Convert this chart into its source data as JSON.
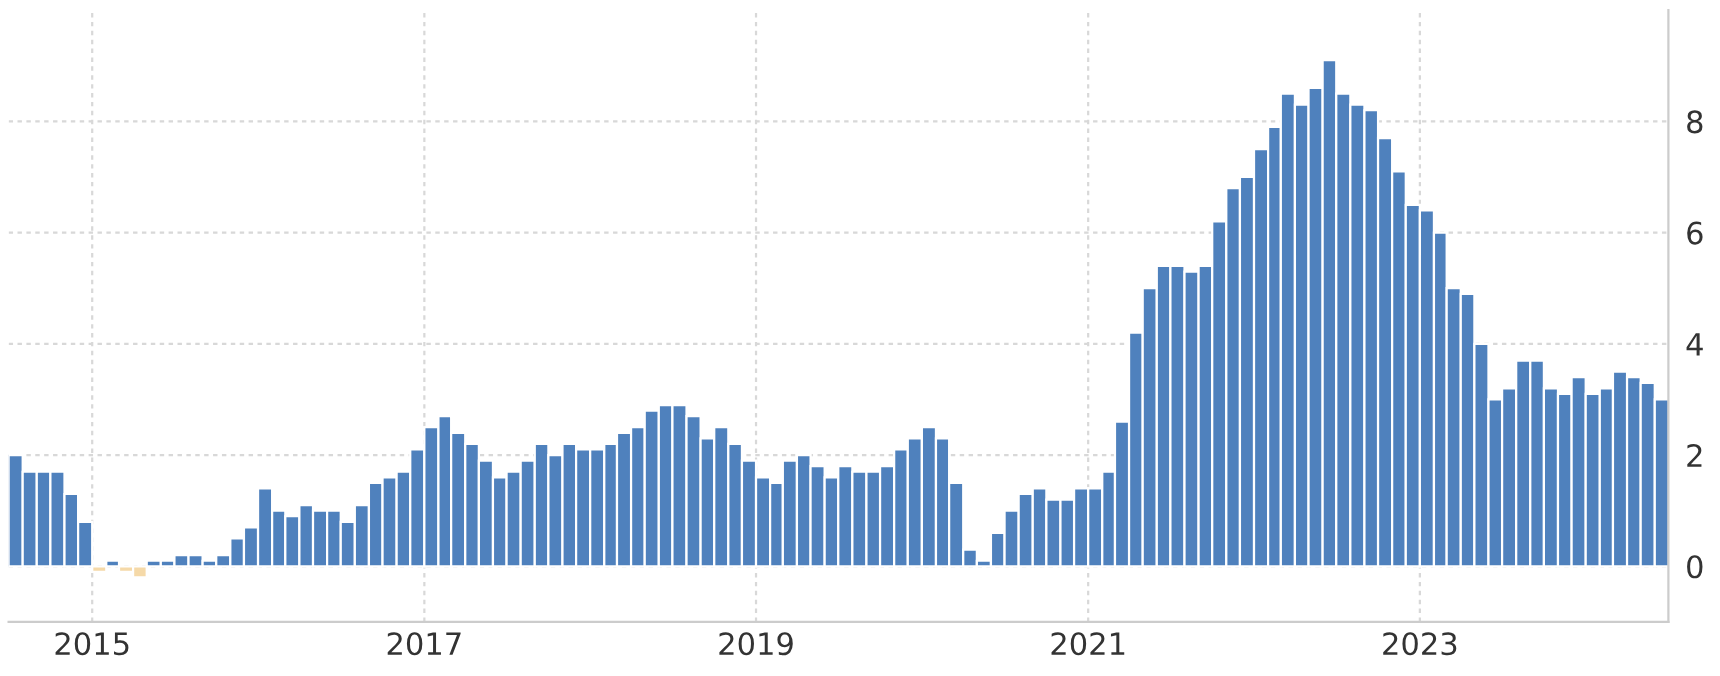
{
  "chart_data": {
    "type": "bar",
    "x": [
      "2014-07",
      "2014-08",
      "2014-09",
      "2014-10",
      "2014-11",
      "2014-12",
      "2015-01",
      "2015-02",
      "2015-03",
      "2015-04",
      "2015-05",
      "2015-06",
      "2015-07",
      "2015-08",
      "2015-09",
      "2015-10",
      "2015-11",
      "2015-12",
      "2016-01",
      "2016-02",
      "2016-03",
      "2016-04",
      "2016-05",
      "2016-06",
      "2016-07",
      "2016-08",
      "2016-09",
      "2016-10",
      "2016-11",
      "2016-12",
      "2017-01",
      "2017-02",
      "2017-03",
      "2017-04",
      "2017-05",
      "2017-06",
      "2017-07",
      "2017-08",
      "2017-09",
      "2017-10",
      "2017-11",
      "2017-12",
      "2018-01",
      "2018-02",
      "2018-03",
      "2018-04",
      "2018-05",
      "2018-06",
      "2018-07",
      "2018-08",
      "2018-09",
      "2018-10",
      "2018-11",
      "2018-12",
      "2019-01",
      "2019-02",
      "2019-03",
      "2019-04",
      "2019-05",
      "2019-06",
      "2019-07",
      "2019-08",
      "2019-09",
      "2019-10",
      "2019-11",
      "2019-12",
      "2020-01",
      "2020-02",
      "2020-03",
      "2020-04",
      "2020-05",
      "2020-06",
      "2020-07",
      "2020-08",
      "2020-09",
      "2020-10",
      "2020-11",
      "2020-12",
      "2021-01",
      "2021-02",
      "2021-03",
      "2021-04",
      "2021-05",
      "2021-06",
      "2021-07",
      "2021-08",
      "2021-09",
      "2021-10",
      "2021-11",
      "2021-12",
      "2022-01",
      "2022-02",
      "2022-03",
      "2022-04",
      "2022-05",
      "2022-06",
      "2022-07",
      "2022-08",
      "2022-09",
      "2022-10",
      "2022-11",
      "2022-12",
      "2023-01",
      "2023-02",
      "2023-03",
      "2023-04",
      "2023-05",
      "2023-06",
      "2023-07",
      "2023-08",
      "2023-09",
      "2023-10",
      "2023-11",
      "2023-12",
      "2024-01",
      "2024-02",
      "2024-03",
      "2024-04",
      "2024-05",
      "2024-06"
    ],
    "values": [
      2.0,
      1.7,
      1.7,
      1.7,
      1.3,
      0.8,
      -0.1,
      0.1,
      -0.1,
      -0.2,
      0.1,
      0.1,
      0.2,
      0.2,
      0.1,
      0.2,
      0.5,
      0.7,
      1.4,
      1.0,
      0.9,
      1.1,
      1.0,
      1.0,
      0.8,
      1.1,
      1.5,
      1.6,
      1.7,
      2.1,
      2.5,
      2.7,
      2.4,
      2.2,
      1.9,
      1.6,
      1.7,
      1.9,
      2.2,
      2.0,
      2.2,
      2.1,
      2.1,
      2.2,
      2.4,
      2.5,
      2.8,
      2.9,
      2.9,
      2.7,
      2.3,
      2.5,
      2.2,
      1.9,
      1.6,
      1.5,
      1.9,
      2.0,
      1.8,
      1.6,
      1.8,
      1.7,
      1.7,
      1.8,
      2.1,
      2.3,
      2.5,
      2.3,
      1.5,
      0.3,
      0.1,
      0.6,
      1.0,
      1.3,
      1.4,
      1.2,
      1.2,
      1.4,
      1.4,
      1.7,
      2.6,
      4.2,
      5.0,
      5.4,
      5.4,
      5.3,
      5.4,
      6.2,
      6.8,
      7.0,
      7.5,
      7.9,
      8.5,
      8.3,
      8.6,
      9.1,
      8.5,
      8.3,
      8.2,
      7.7,
      7.1,
      6.5,
      6.4,
      6.0,
      5.0,
      4.9,
      4.0,
      3.0,
      3.2,
      3.7,
      3.7,
      3.2,
      3.1,
      3.4,
      3.1,
      3.2,
      3.5,
      3.4,
      3.3,
      3.0
    ],
    "colors": [
      "#4f81bd",
      "#4f81bd",
      "#4f81bd",
      "#4f81bd",
      "#4f81bd",
      "#4f81bd",
      "#f5d9a8",
      "#4f81bd",
      "#f5d9a8",
      "#f5d9a8",
      "#4f81bd",
      "#4f81bd",
      "#4f81bd",
      "#4f81bd",
      "#4f81bd",
      "#4f81bd",
      "#4f81bd",
      "#4f81bd",
      "#4f81bd",
      "#4f81bd",
      "#4f81bd",
      "#4f81bd",
      "#4f81bd",
      "#4f81bd",
      "#4f81bd",
      "#4f81bd",
      "#4f81bd",
      "#4f81bd",
      "#4f81bd",
      "#4f81bd",
      "#4f81bd",
      "#4f81bd",
      "#4f81bd",
      "#4f81bd",
      "#4f81bd",
      "#4f81bd",
      "#4f81bd",
      "#4f81bd",
      "#4f81bd",
      "#4f81bd",
      "#4f81bd",
      "#4f81bd",
      "#4f81bd",
      "#4f81bd",
      "#4f81bd",
      "#4f81bd",
      "#4f81bd",
      "#4f81bd",
      "#4f81bd",
      "#4f81bd",
      "#4f81bd",
      "#4f81bd",
      "#4f81bd",
      "#4f81bd",
      "#4f81bd",
      "#4f81bd",
      "#4f81bd",
      "#4f81bd",
      "#4f81bd",
      "#4f81bd",
      "#4f81bd",
      "#4f81bd",
      "#4f81bd",
      "#4f81bd",
      "#4f81bd",
      "#4f81bd",
      "#4f81bd",
      "#4f81bd",
      "#4f81bd",
      "#4f81bd",
      "#4f81bd",
      "#4f81bd",
      "#4f81bd",
      "#4f81bd",
      "#4f81bd",
      "#4f81bd",
      "#4f81bd",
      "#4f81bd",
      "#4f81bd",
      "#4f81bd",
      "#4f81bd",
      "#4f81bd",
      "#4f81bd",
      "#4f81bd",
      "#4f81bd",
      "#4f81bd",
      "#4f81bd",
      "#4f81bd",
      "#4f81bd",
      "#4f81bd",
      "#4f81bd",
      "#4f81bd",
      "#4f81bd",
      "#4f81bd",
      "#4f81bd",
      "#4f81bd",
      "#4f81bd",
      "#4f81bd",
      "#4f81bd",
      "#4f81bd",
      "#4f81bd",
      "#4f81bd",
      "#4f81bd",
      "#4f81bd",
      "#4f81bd",
      "#4f81bd",
      "#4f81bd",
      "#4f81bd",
      "#4f81bd",
      "#4f81bd",
      "#4f81bd",
      "#4f81bd",
      "#4f81bd",
      "#4f81bd",
      "#4f81bd",
      "#4f81bd",
      "#4f81bd",
      "#4f81bd",
      "#4f81bd",
      "#4f81bd"
    ],
    "xlim": [
      "2014-07",
      "2024-07"
    ],
    "xticks": [
      "2015",
      "2017",
      "2019",
      "2021",
      "2023"
    ],
    "ylim": [
      -1,
      10
    ],
    "yticks": [
      0,
      2,
      4,
      6,
      8
    ],
    "grid": true
  }
}
